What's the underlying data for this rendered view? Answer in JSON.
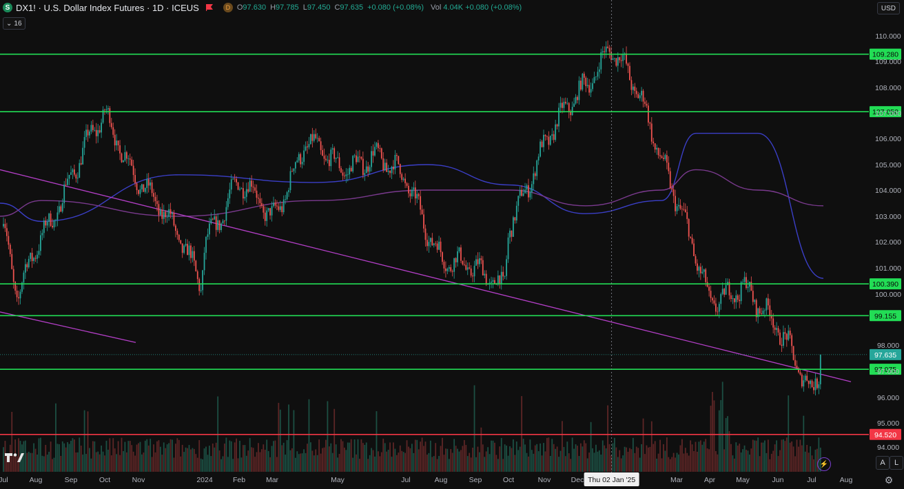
{
  "header": {
    "symbol_icon": "S",
    "title": "DX1! · U.S. Dollar Index Futures · 1D · ICEUS",
    "flag_icon": "red-flag-icon",
    "d_badge": "D",
    "open_label": "O",
    "open": "97.630",
    "high_label": "H",
    "high": "97.785",
    "low_label": "L",
    "low": "97.450",
    "close_label": "C",
    "close": "97.635",
    "change": "+0.080 (+0.08%)",
    "volume_label": "Vol",
    "volume": "4.04K",
    "volume_change": "+0.080 (+0.08%)",
    "indicators_count": "16",
    "currency": "USD"
  },
  "colors": {
    "background": "#0f0f0f",
    "up": "#26a69a",
    "down": "#ef5350",
    "support": "#22dd55",
    "red_level": "#f23645",
    "trendline": "#b43fc8",
    "ma_fast": "#3b3fc8",
    "ma_slow": "#7a3a8e"
  },
  "chart_data": {
    "type": "candlestick",
    "y_axis": {
      "ticks": [
        "110.000",
        "109.000",
        "108.000",
        "107.000",
        "106.000",
        "105.000",
        "104.000",
        "103.000",
        "102.000",
        "101.000",
        "100.000",
        "98.000",
        "97.000",
        "96.000",
        "95.000",
        "94.000"
      ]
    },
    "x_axis": {
      "ticks": [
        "Jul",
        "Aug",
        "Sep",
        "Oct",
        "Nov",
        "2024",
        "Feb",
        "Mar",
        "May",
        "Jul",
        "Aug",
        "Sep",
        "Oct",
        "Nov",
        "Dec",
        "Mar",
        "Apr",
        "May",
        "Jun",
        "Jul",
        "Aug"
      ],
      "crosshair_label": "Thu 02 Jan '25"
    },
    "price_levels": [
      {
        "label": "109.280",
        "value": 109.28,
        "color": "green"
      },
      {
        "label": "107.050",
        "value": 107.05,
        "color": "green"
      },
      {
        "label": "100.390",
        "value": 100.39,
        "color": "green"
      },
      {
        "label": "99.155",
        "value": 99.155,
        "color": "green"
      },
      {
        "label": "97.075",
        "value": 97.075,
        "color": "green"
      },
      {
        "label": "94.520",
        "value": 94.52,
        "color": "red"
      }
    ],
    "last_price": {
      "label": "97.635",
      "value": 97.635
    },
    "approx_path": [
      [
        "2023-07",
        102.6
      ],
      [
        "2023-07-14",
        99.6
      ],
      [
        "2023-08",
        101.8
      ],
      [
        "2023-09",
        104.6
      ],
      [
        "2023-10",
        106.8
      ],
      [
        "2023-11",
        104.6
      ],
      [
        "2023-12",
        102.4
      ],
      [
        "2023-12-28",
        100.6
      ],
      [
        "2024-01",
        102.2
      ],
      [
        "2024-02",
        104.2
      ],
      [
        "2024-03",
        103.0
      ],
      [
        "2024-04",
        105.8
      ],
      [
        "2024-05",
        104.8
      ],
      [
        "2024-06",
        105.5
      ],
      [
        "2024-07",
        104.2
      ],
      [
        "2024-08",
        101.6
      ],
      [
        "2024-09",
        100.7
      ],
      [
        "2024-09-27",
        100.4
      ],
      [
        "2024-10",
        102.8
      ],
      [
        "2024-11",
        105.5
      ],
      [
        "2024-12",
        107.9
      ],
      [
        "2025-01",
        109.5
      ],
      [
        "2025-02",
        107.2
      ],
      [
        "2025-03",
        103.8
      ],
      [
        "2025-04",
        99.4
      ],
      [
        "2025-05",
        100.6
      ],
      [
        "2025-06",
        98.4
      ],
      [
        "2025-07",
        96.4
      ],
      [
        "2025-07-10",
        97.635
      ]
    ],
    "moving_averages": [
      {
        "path": [
          [
            103.5
          ],
          [
            102.8
          ],
          [
            104.6
          ],
          [
            104.3
          ],
          [
            105.0
          ],
          [
            104.2
          ],
          [
            103.1
          ],
          [
            103.6
          ],
          [
            106.2
          ],
          [
            106.2
          ],
          [
            100.6
          ]
        ]
      },
      {
        "path": [
          [
            103.0
          ],
          [
            103.6
          ],
          [
            103.0
          ],
          [
            103.6
          ],
          [
            104.0
          ],
          [
            104.0
          ],
          [
            103.4
          ],
          [
            104.0
          ],
          [
            104.8
          ],
          [
            104.0
          ],
          [
            103.4
          ]
        ]
      }
    ],
    "trendlines": [
      {
        "from": [
          0,
          104.8
        ],
        "to": [
          1235,
          96.6
        ]
      },
      {
        "from": [
          0,
          99.3
        ],
        "to": [
          197,
          98.1
        ]
      }
    ],
    "grid": false
  },
  "toolbar": {
    "logo": "TV",
    "auto_btn": "A",
    "log_btn": "L",
    "bolt_icon": "lightning-icon",
    "settings_icon": "gear-icon"
  }
}
